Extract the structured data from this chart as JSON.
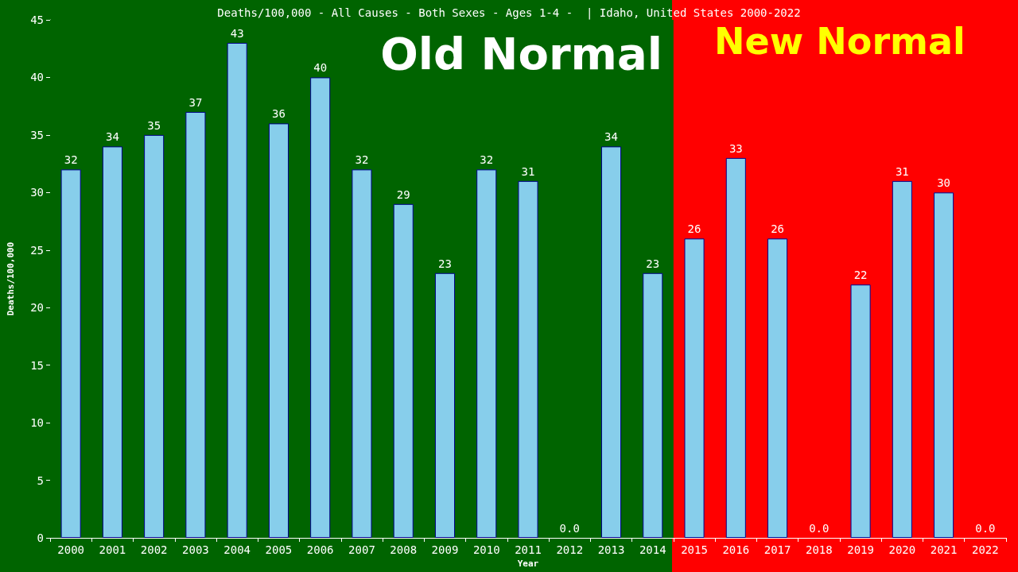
{
  "chart_data": {
    "type": "bar",
    "title": "Deaths/100,000 - All Causes - Both Sexes - Ages 1-4 -  | Idaho, United States 2000-2022",
    "xlabel": "Year",
    "ylabel": "Deaths/100,000",
    "categories": [
      "2000",
      "2001",
      "2002",
      "2003",
      "2004",
      "2005",
      "2006",
      "2007",
      "2008",
      "2009",
      "2010",
      "2011",
      "2012",
      "2013",
      "2014",
      "2015",
      "2016",
      "2017",
      "2018",
      "2019",
      "2020",
      "2021",
      "2022"
    ],
    "values": [
      32,
      34,
      35,
      37,
      43,
      36,
      40,
      32,
      29,
      23,
      32,
      31,
      0,
      34,
      23,
      26,
      33,
      26,
      0,
      22,
      31,
      30,
      0
    ],
    "value_labels": [
      "32",
      "34",
      "35",
      "37",
      "43",
      "36",
      "40",
      "32",
      "29",
      "23",
      "32",
      "31",
      "0.0",
      "34",
      "23",
      "26",
      "33",
      "26",
      "0.0",
      "22",
      "31",
      "30",
      "0.0"
    ],
    "color": "#87ceeb",
    "ylim": [
      0,
      45
    ],
    "yticks": [
      0,
      5,
      10,
      15,
      20,
      25,
      30,
      35,
      40,
      45
    ],
    "grid": false,
    "bands": [
      {
        "axis": "x",
        "from": "2000",
        "to": "2014",
        "label": "Old Normal",
        "color": "#006400"
      },
      {
        "axis": "x",
        "from": "2015",
        "to": "2022",
        "label": "New Normal",
        "color": "#ff0000"
      }
    ]
  }
}
